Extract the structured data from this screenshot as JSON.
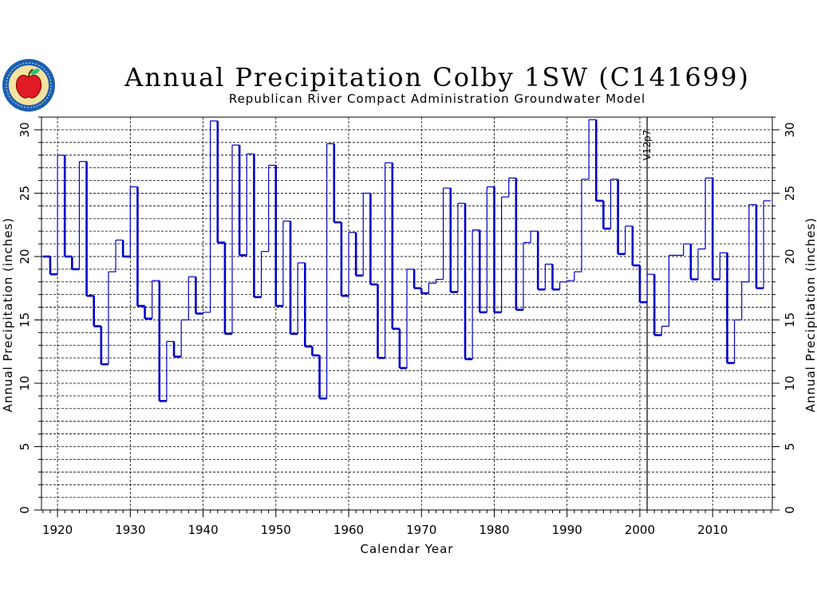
{
  "chart_data": {
    "type": "step",
    "title": "Annual Precipitation Colby 1SW (C141699)",
    "subtitle": "Republican River Compact Administration Groundwater Model",
    "xlabel": "Calendar Year",
    "ylabel": "Annual Precipitation (inches)",
    "ylabel_right": "Annual Precipitation (inches)",
    "xlim": [
      1917.8,
      2018.2
    ],
    "ylim": [
      0,
      31
    ],
    "x_ticks": [
      "1920",
      "1930",
      "1940",
      "1950",
      "1960",
      "1970",
      "1980",
      "1990",
      "2000",
      "2010"
    ],
    "y_ticks": [
      "0",
      "5",
      "10",
      "15",
      "20",
      "25",
      "30"
    ],
    "grid": true,
    "annotation": {
      "label": "V12p7",
      "x": 2001
    },
    "colors": {
      "series": "#0000cc",
      "grid": "#000000",
      "background": "#ffffff"
    },
    "years": [
      1918,
      1919,
      1920,
      1921,
      1922,
      1923,
      1924,
      1925,
      1926,
      1927,
      1928,
      1929,
      1930,
      1931,
      1932,
      1933,
      1934,
      1935,
      1936,
      1937,
      1938,
      1939,
      1940,
      1941,
      1942,
      1943,
      1944,
      1945,
      1946,
      1947,
      1948,
      1949,
      1950,
      1951,
      1952,
      1953,
      1954,
      1955,
      1956,
      1957,
      1958,
      1959,
      1960,
      1961,
      1962,
      1963,
      1964,
      1965,
      1966,
      1967,
      1968,
      1969,
      1970,
      1971,
      1972,
      1973,
      1974,
      1975,
      1976,
      1977,
      1978,
      1979,
      1980,
      1981,
      1982,
      1983,
      1984,
      1985,
      1986,
      1987,
      1988,
      1989,
      1990,
      1991,
      1992,
      1993,
      1994,
      1995,
      1996,
      1997,
      1998,
      1999,
      2000,
      2001,
      2002,
      2003,
      2004,
      2005,
      2006,
      2007,
      2008,
      2009,
      2010,
      2011,
      2012,
      2013,
      2014,
      2015,
      2016,
      2017
    ],
    "values": [
      20.0,
      18.6,
      28.0,
      20.0,
      19.0,
      27.5,
      16.9,
      14.5,
      11.5,
      18.8,
      21.3,
      20.0,
      25.5,
      16.1,
      15.1,
      18.1,
      8.6,
      13.3,
      12.1,
      15.0,
      18.4,
      15.5,
      15.6,
      30.7,
      21.1,
      13.9,
      28.8,
      20.1,
      28.1,
      16.8,
      20.4,
      27.2,
      16.1,
      22.8,
      13.9,
      19.5,
      12.9,
      12.2,
      8.8,
      28.9,
      22.7,
      16.9,
      21.9,
      18.5,
      25.0,
      17.8,
      12.0,
      27.4,
      14.3,
      11.2,
      19.0,
      17.5,
      17.1,
      17.9,
      18.2,
      25.4,
      17.2,
      24.2,
      11.9,
      22.1,
      15.6,
      25.5,
      15.6,
      24.7,
      26.2,
      15.8,
      21.1,
      22.0,
      17.4,
      19.4,
      17.4,
      18.0,
      18.1,
      18.8,
      26.1,
      30.8,
      24.4,
      22.2,
      26.1,
      20.2,
      22.4,
      19.3,
      16.4,
      18.6,
      13.8,
      14.5,
      20.1,
      20.1,
      21.0,
      18.2,
      20.6,
      26.2,
      18.2,
      20.3,
      11.6,
      15.0,
      18.0,
      24.1,
      17.5,
      24.4
    ]
  }
}
